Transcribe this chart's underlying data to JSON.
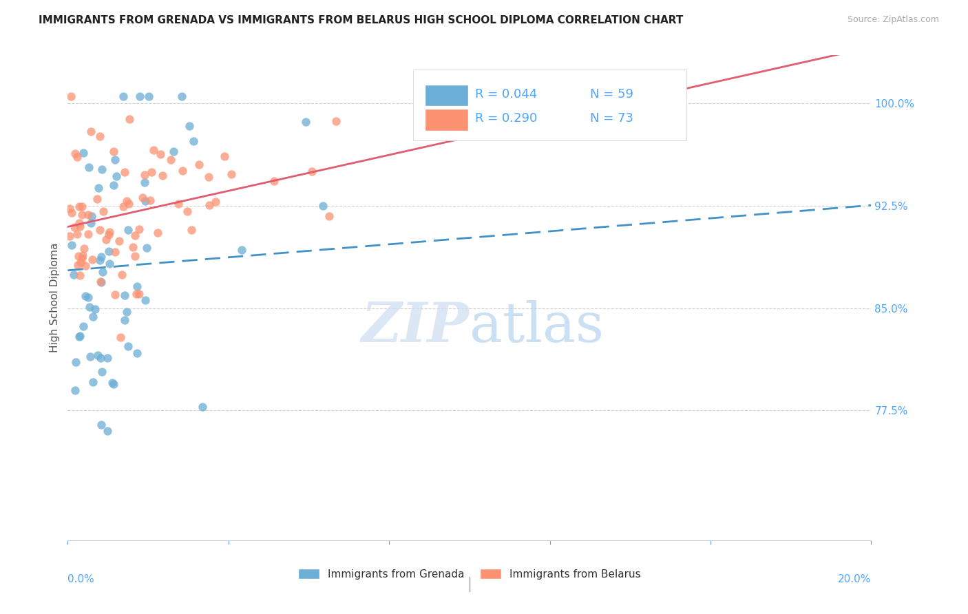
{
  "title": "IMMIGRANTS FROM GRENADA VS IMMIGRANTS FROM BELARUS HIGH SCHOOL DIPLOMA CORRELATION CHART",
  "source": "Source: ZipAtlas.com",
  "ylabel": "High School Diploma",
  "ytick_labels": [
    "100.0%",
    "92.5%",
    "85.0%",
    "77.5%"
  ],
  "ytick_values": [
    1.0,
    0.925,
    0.85,
    0.775
  ],
  "xlim": [
    0.0,
    0.2
  ],
  "ylim": [
    0.68,
    1.035
  ],
  "legend_R_grenada": "R = 0.044",
  "legend_N_grenada": "N = 59",
  "legend_R_belarus": "R = 0.290",
  "legend_N_belarus": "N = 73",
  "color_grenada": "#6baed6",
  "color_belarus": "#fc9272",
  "color_grenada_line": "#4292c6",
  "color_belarus_line": "#e05c6e",
  "color_axis_labels": "#4da6ff",
  "background_color": "#ffffff",
  "label_grenada": "Immigrants from Grenada",
  "label_belarus": "Immigrants from Belarus"
}
